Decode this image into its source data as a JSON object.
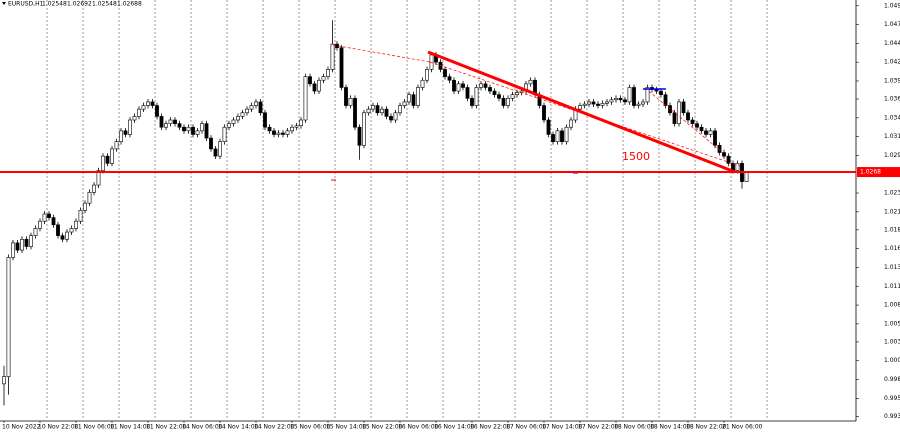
{
  "chart_data": {
    "type": "candlestick",
    "symbol": "EURUSD,H1",
    "header_prices": [
      1.02548,
      1.02692,
      1.02548,
      1.02688
    ],
    "up_color": "#ffffff",
    "down_color": "#000000",
    "price_line_color": "#ff0000",
    "price_line": 1.0268,
    "annotation": "1500",
    "grid": true,
    "ylim": [
      0.9925,
      1.0506
    ],
    "yticks": [
      1.0498,
      1.0472,
      1.0446,
      {
        "value": 1.042,
        "label": "1.0420"
      },
      1.0394,
      1.0369,
      1.0343,
      1.0317,
      1.0291,
      1.0239,
      1.0213,
      1.0188,
      1.0162,
      1.0136,
      {
        "value": 1.011,
        "label": "1.0110"
      },
      1.0084,
      1.0058,
      1.0033,
      1.0007,
      0.9981,
      0.9955,
      {
        "value": 0.993,
        "label": "0.9930"
      }
    ],
    "xticks": [
      {
        "value": 0,
        "label": "10 Nov 2022"
      },
      {
        "value": 8,
        "label": "10 Nov 22:00"
      },
      {
        "value": 16,
        "label": "11 Nov 06:00"
      },
      {
        "value": 24,
        "label": "11 Nov 14:00"
      },
      {
        "value": 32,
        "label": "11 Nov 22:00"
      },
      {
        "value": 40,
        "label": "14 Nov 06:00"
      },
      {
        "value": 48,
        "label": "14 Nov 14:00"
      },
      {
        "value": 56,
        "label": "14 Nov 22:00"
      },
      {
        "value": 64,
        "label": "15 Nov 06:00"
      },
      {
        "value": 72,
        "label": "15 Nov 14:00"
      },
      {
        "value": 80,
        "label": "15 Nov 22:00"
      },
      {
        "value": 88,
        "label": "16 Nov 06:00"
      },
      {
        "value": 96,
        "label": "16 Nov 14:00"
      },
      {
        "value": 104,
        "label": "16 Nov 22:00"
      },
      {
        "value": 112,
        "label": "17 Nov 06:00"
      },
      {
        "value": 120,
        "label": "17 Nov 14:00"
      },
      {
        "value": 128,
        "label": "17 Nov 22:00"
      },
      {
        "value": 136,
        "label": "18 Nov 06:00"
      },
      {
        "value": 144,
        "label": "18 Nov 14:00"
      },
      {
        "value": 152,
        "label": "18 Nov 22:00"
      },
      {
        "value": 160,
        "label": "21 Nov 06:00"
      }
    ],
    "ohlc": [
      [
        0.9975,
        1.0,
        0.9945,
        0.9985
      ],
      [
        0.9985,
        1.0154,
        0.996,
        1.015
      ],
      [
        1.015,
        1.0174,
        1.0146,
        1.017
      ],
      [
        1.017,
        1.0174,
        1.0156,
        1.016
      ],
      [
        1.016,
        1.0179,
        1.0156,
        1.0175
      ],
      [
        1.0175,
        1.0179,
        1.0161,
        1.0165
      ],
      [
        1.0165,
        1.0184,
        1.0161,
        1.018
      ],
      [
        1.018,
        1.0194,
        1.0176,
        1.019
      ],
      [
        1.019,
        1.0204,
        1.0186,
        1.02
      ],
      [
        1.02,
        1.0214,
        1.0196,
        1.021
      ],
      [
        1.021,
        1.0214,
        1.0201,
        1.0205
      ],
      [
        1.0205,
        1.0209,
        1.0191,
        1.0195
      ],
      [
        1.0195,
        1.0199,
        1.0176,
        1.018
      ],
      [
        1.018,
        1.0184,
        1.0171,
        1.0175
      ],
      [
        1.0175,
        1.0189,
        1.0171,
        1.0185
      ],
      [
        1.0185,
        1.0194,
        1.0181,
        1.019
      ],
      [
        1.019,
        1.0204,
        1.0186,
        1.02
      ],
      [
        1.02,
        1.0219,
        1.0196,
        1.0215
      ],
      [
        1.0215,
        1.0229,
        1.0211,
        1.0225
      ],
      [
        1.0225,
        1.0244,
        1.0221,
        1.024
      ],
      [
        1.024,
        1.0254,
        1.0236,
        1.025
      ],
      [
        1.025,
        1.0274,
        1.0246,
        1.027
      ],
      [
        1.027,
        1.0294,
        1.0266,
        1.029
      ],
      [
        1.029,
        1.0294,
        1.0276,
        1.028
      ],
      [
        1.028,
        1.0304,
        1.0276,
        1.03
      ],
      [
        1.03,
        1.0314,
        1.0296,
        1.031
      ],
      [
        1.031,
        1.0329,
        1.0306,
        1.0325
      ],
      [
        1.0325,
        1.0329,
        1.0316,
        1.032
      ],
      [
        1.032,
        1.0344,
        1.0316,
        1.034
      ],
      [
        1.034,
        1.0349,
        1.0336,
        1.0345
      ],
      [
        1.0345,
        1.0359,
        1.0341,
        1.0355
      ],
      [
        1.0355,
        1.0364,
        1.0351,
        1.036
      ],
      [
        1.036,
        1.0369,
        1.0356,
        1.0365
      ],
      [
        1.0365,
        1.0369,
        1.0356,
        1.036
      ],
      [
        1.036,
        1.0364,
        1.0341,
        1.0345
      ],
      [
        1.0345,
        1.0349,
        1.0326,
        1.033
      ],
      [
        1.033,
        1.0339,
        1.0326,
        1.0335
      ],
      [
        1.0335,
        1.0344,
        1.0331,
        1.034
      ],
      [
        1.034,
        1.0344,
        1.0331,
        1.0335
      ],
      [
        1.0335,
        1.0339,
        1.0326,
        1.033
      ],
      [
        1.033,
        1.0334,
        1.0321,
        1.0325
      ],
      [
        1.0325,
        1.0334,
        1.0321,
        1.033
      ],
      [
        1.033,
        1.0334,
        1.0316,
        1.032
      ],
      [
        1.032,
        1.0329,
        1.0316,
        1.0325
      ],
      [
        1.0325,
        1.0339,
        1.0321,
        1.0335
      ],
      [
        1.0335,
        1.0339,
        1.0311,
        1.0315
      ],
      [
        1.0315,
        1.0319,
        1.0296,
        1.03
      ],
      [
        1.03,
        1.0304,
        1.0286,
        1.029
      ],
      [
        1.029,
        1.0314,
        1.0286,
        1.031
      ],
      [
        1.031,
        1.0334,
        1.0306,
        1.033
      ],
      [
        1.033,
        1.0339,
        1.0326,
        1.0335
      ],
      [
        1.0335,
        1.0344,
        1.0331,
        1.034
      ],
      [
        1.034,
        1.0349,
        1.0336,
        1.0345
      ],
      [
        1.0345,
        1.0354,
        1.0341,
        1.035
      ],
      [
        1.035,
        1.0359,
        1.0346,
        1.0355
      ],
      [
        1.0355,
        1.0364,
        1.0351,
        1.036
      ],
      [
        1.036,
        1.0369,
        1.0356,
        1.0365
      ],
      [
        1.0365,
        1.0369,
        1.0346,
        1.035
      ],
      [
        1.035,
        1.0354,
        1.0326,
        1.033
      ],
      [
        1.033,
        1.0334,
        1.0321,
        1.0325
      ],
      [
        1.0325,
        1.0329,
        1.0316,
        1.032
      ],
      [
        1.032,
        1.0326,
        1.0316,
        1.0322
      ],
      [
        1.0322,
        1.0326,
        1.0316,
        1.032
      ],
      [
        1.032,
        1.0329,
        1.0316,
        1.0325
      ],
      [
        1.0325,
        1.0334,
        1.0321,
        1.033
      ],
      [
        1.033,
        1.0336,
        1.0326,
        1.0332
      ],
      [
        1.0332,
        1.0344,
        1.0328,
        1.034
      ],
      [
        1.034,
        1.0404,
        1.0336,
        1.04
      ],
      [
        1.04,
        1.0404,
        1.0386,
        1.039
      ],
      [
        1.039,
        1.0394,
        1.0376,
        1.038
      ],
      [
        1.038,
        1.0399,
        1.0376,
        1.0395
      ],
      [
        1.0395,
        1.0404,
        1.0391,
        1.04
      ],
      [
        1.04,
        1.0414,
        1.0396,
        1.041
      ],
      [
        1.041,
        1.0478,
        1.0406,
        1.0445
      ],
      [
        1.0445,
        1.0449,
        1.0436,
        1.044
      ],
      [
        1.044,
        1.0444,
        1.0381,
        1.0385
      ],
      [
        1.0385,
        1.0389,
        1.0356,
        1.036
      ],
      [
        1.036,
        1.0374,
        1.0356,
        1.037
      ],
      [
        1.037,
        1.0374,
        1.0326,
        1.033
      ],
      [
        1.033,
        1.0334,
        1.0285,
        1.0305
      ],
      [
        1.0305,
        1.0354,
        1.0301,
        1.035
      ],
      [
        1.035,
        1.0359,
        1.0346,
        1.0355
      ],
      [
        1.0355,
        1.0364,
        1.0351,
        1.036
      ],
      [
        1.036,
        1.0364,
        1.0346,
        1.035
      ],
      [
        1.035,
        1.0359,
        1.0346,
        1.0355
      ],
      [
        1.0355,
        1.0359,
        1.0341,
        1.0345
      ],
      [
        1.0345,
        1.0349,
        1.0336,
        1.034
      ],
      [
        1.034,
        1.0354,
        1.0336,
        1.035
      ],
      [
        1.035,
        1.0364,
        1.0346,
        1.036
      ],
      [
        1.036,
        1.0369,
        1.0356,
        1.0365
      ],
      [
        1.0365,
        1.0379,
        1.0361,
        1.0375
      ],
      [
        1.0375,
        1.0379,
        1.0356,
        1.036
      ],
      [
        1.036,
        1.0389,
        1.0356,
        1.0385
      ],
      [
        1.0385,
        1.0399,
        1.0381,
        1.0395
      ],
      [
        1.0395,
        1.0414,
        1.0391,
        1.041
      ],
      [
        1.041,
        1.0434,
        1.0406,
        1.043
      ],
      [
        1.043,
        1.0434,
        1.0416,
        1.042
      ],
      [
        1.042,
        1.0424,
        1.0406,
        1.041
      ],
      [
        1.041,
        1.0414,
        1.0396,
        1.04
      ],
      [
        1.04,
        1.0404,
        1.0391,
        1.0395
      ],
      [
        1.0395,
        1.0399,
        1.0376,
        1.038
      ],
      [
        1.038,
        1.0394,
        1.0376,
        1.039
      ],
      [
        1.039,
        1.0394,
        1.0381,
        1.0385
      ],
      [
        1.0385,
        1.0389,
        1.0366,
        1.037
      ],
      [
        1.037,
        1.0374,
        1.0356,
        1.036
      ],
      [
        1.036,
        1.0389,
        1.0356,
        1.0385
      ],
      [
        1.0385,
        1.0394,
        1.0381,
        1.039
      ],
      [
        1.039,
        1.0394,
        1.0381,
        1.0385
      ],
      [
        1.0385,
        1.0389,
        1.0376,
        1.038
      ],
      [
        1.038,
        1.0384,
        1.0371,
        1.0375
      ],
      [
        1.0375,
        1.0379,
        1.0366,
        1.037
      ],
      [
        1.037,
        1.0374,
        1.0356,
        1.036
      ],
      [
        1.036,
        1.0374,
        1.0356,
        1.037
      ],
      [
        1.037,
        1.0379,
        1.0366,
        1.0375
      ],
      [
        1.0375,
        1.0382,
        1.0371,
        1.0378
      ],
      [
        1.0378,
        1.0384,
        1.0374,
        1.038
      ],
      [
        1.038,
        1.0394,
        1.0376,
        1.039
      ],
      [
        1.039,
        1.0399,
        1.0386,
        1.0395
      ],
      [
        1.0395,
        1.0399,
        1.0371,
        1.0375
      ],
      [
        1.0375,
        1.0379,
        1.0356,
        1.036
      ],
      [
        1.036,
        1.0364,
        1.0336,
        1.034
      ],
      [
        1.034,
        1.0344,
        1.0316,
        1.032
      ],
      [
        1.032,
        1.0324,
        1.0306,
        1.031
      ],
      [
        1.031,
        1.0329,
        1.0306,
        1.0325
      ],
      [
        1.0325,
        1.0329,
        1.0306,
        1.031
      ],
      [
        1.031,
        1.0334,
        1.0306,
        1.033
      ],
      [
        1.033,
        1.0344,
        1.0326,
        1.034
      ],
      [
        1.034,
        1.0359,
        1.0336,
        1.0355
      ],
      [
        1.0355,
        1.0364,
        1.0351,
        1.036
      ],
      [
        1.036,
        1.0366,
        1.0356,
        1.0362
      ],
      [
        1.0362,
        1.0369,
        1.0358,
        1.0365
      ],
      [
        1.0365,
        1.0369,
        1.0358,
        1.0362
      ],
      [
        1.0362,
        1.0366,
        1.0356,
        1.036
      ],
      [
        1.036,
        1.0367,
        1.0356,
        1.0363
      ],
      [
        1.0363,
        1.0369,
        1.0359,
        1.0365
      ],
      [
        1.0365,
        1.0372,
        1.0361,
        1.0368
      ],
      [
        1.0368,
        1.0374,
        1.0364,
        1.037
      ],
      [
        1.037,
        1.0374,
        1.0364,
        1.0368
      ],
      [
        1.0368,
        1.0372,
        1.0361,
        1.0365
      ],
      [
        1.0365,
        1.0389,
        1.0361,
        1.0385
      ],
      [
        1.0385,
        1.0389,
        1.0356,
        1.036
      ],
      [
        1.036,
        1.0366,
        1.0356,
        1.0362
      ],
      [
        1.0362,
        1.0369,
        1.0358,
        1.0365
      ],
      [
        1.0365,
        1.0389,
        1.0361,
        1.0385
      ],
      [
        1.0385,
        1.0389,
        1.0378,
        1.0382
      ],
      [
        1.0382,
        1.0386,
        1.0376,
        1.038
      ],
      [
        1.038,
        1.0384,
        1.0371,
        1.0375
      ],
      [
        1.0375,
        1.0379,
        1.0356,
        1.036
      ],
      [
        1.036,
        1.0364,
        1.0346,
        1.035
      ],
      [
        1.035,
        1.0354,
        1.0331,
        1.0335
      ],
      [
        1.0335,
        1.0369,
        1.0331,
        1.0365
      ],
      [
        1.0365,
        1.0369,
        1.0346,
        1.035
      ],
      [
        1.035,
        1.0354,
        1.0336,
        1.034
      ],
      [
        1.034,
        1.0344,
        1.0331,
        1.0335
      ],
      [
        1.0335,
        1.0339,
        1.0326,
        1.033
      ],
      [
        1.033,
        1.0334,
        1.0321,
        1.0325
      ],
      [
        1.0325,
        1.0329,
        1.0316,
        1.032
      ],
      [
        1.032,
        1.0329,
        1.0316,
        1.0325
      ],
      [
        1.0325,
        1.0329,
        1.0301,
        1.0305
      ],
      [
        1.0305,
        1.0309,
        1.0291,
        1.0295
      ],
      [
        1.0295,
        1.0299,
        1.0286,
        1.029
      ],
      [
        1.029,
        1.0294,
        1.0276,
        1.028
      ],
      [
        1.028,
        1.0284,
        1.0266,
        1.027
      ],
      [
        1.027,
        1.0284,
        1.0266,
        1.028
      ],
      [
        1.028,
        1.0284,
        1.0245,
        1.02548
      ],
      [
        1.02548,
        1.02692,
        1.02548,
        1.02688
      ]
    ]
  }
}
